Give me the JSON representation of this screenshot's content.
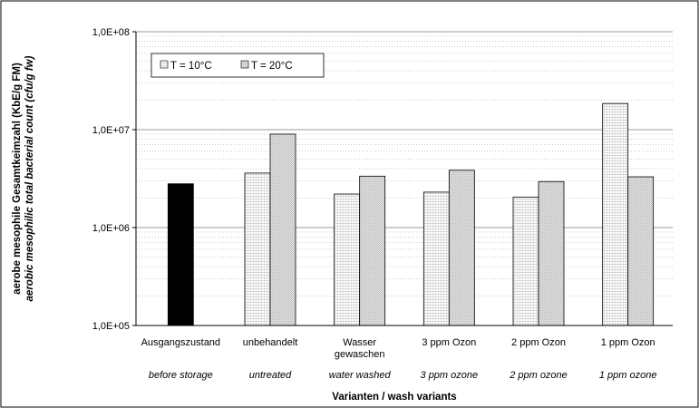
{
  "chart_data": {
    "type": "bar",
    "scale": "log",
    "ylim": [
      100000,
      100000000
    ],
    "yticks": [
      "1,0E+05",
      "1,0E+06",
      "1,0E+07",
      "1,0E+08"
    ],
    "categories": [
      "Ausgangszustand",
      "unbehandelt",
      "Wasser gewaschen",
      "3 ppm Ozon",
      "2 ppm Ozon",
      "1 ppm Ozon"
    ],
    "categories_en": [
      "before storage",
      "untreated",
      "water washed",
      "3 ppm ozone",
      "2 ppm ozone",
      "1 ppm ozone"
    ],
    "baseline": {
      "category": "Ausgangszustand",
      "value": 2800000,
      "color": "#000000"
    },
    "series": [
      {
        "name": "T  = 10°C",
        "values": [
          null,
          3600000,
          2200000,
          2300000,
          2050000,
          18500000
        ]
      },
      {
        "name": "T = 20°C",
        "values": [
          null,
          9000000,
          3350000,
          3850000,
          2950000,
          3300000
        ]
      }
    ],
    "ylabel_de": "aerobe mesophile Gesamtkeimzahl (KbE/g FM)",
    "ylabel_en": "aerobic  mesophilic total bacterial count (cfu/g fw)",
    "xlabel": "Varianten / wash variants",
    "grid": true,
    "legend_position": "top-left"
  }
}
